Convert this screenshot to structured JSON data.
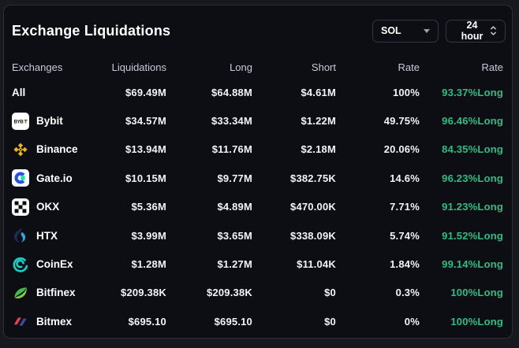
{
  "panel": {
    "title": "Exchange Liquidations",
    "controls": {
      "symbol_select": {
        "value": "SOL"
      },
      "timeframe_select": {
        "value": "24 hour"
      }
    }
  },
  "table": {
    "columns": [
      "Exchanges",
      "Liquidations",
      "Long",
      "Short",
      "Rate",
      "Rate"
    ],
    "rows": [
      {
        "name": "All",
        "icon": "",
        "liquidations": "$69.49M",
        "long": "$64.88M",
        "short": "$4.61M",
        "rate": "100%",
        "long_rate": "93.37%Long"
      },
      {
        "name": "Bybit",
        "icon": "bybit-icon",
        "liquidations": "$34.57M",
        "long": "$33.34M",
        "short": "$1.22M",
        "rate": "49.75%",
        "long_rate": "96.46%Long"
      },
      {
        "name": "Binance",
        "icon": "binance-icon",
        "liquidations": "$13.94M",
        "long": "$11.76M",
        "short": "$2.18M",
        "rate": "20.06%",
        "long_rate": "84.35%Long"
      },
      {
        "name": "Gate.io",
        "icon": "gateio-icon",
        "liquidations": "$10.15M",
        "long": "$9.77M",
        "short": "$382.75K",
        "rate": "14.6%",
        "long_rate": "96.23%Long"
      },
      {
        "name": "OKX",
        "icon": "okx-icon",
        "liquidations": "$5.36M",
        "long": "$4.89M",
        "short": "$470.00K",
        "rate": "7.71%",
        "long_rate": "91.23%Long"
      },
      {
        "name": "HTX",
        "icon": "htx-icon",
        "liquidations": "$3.99M",
        "long": "$3.65M",
        "short": "$338.09K",
        "rate": "5.74%",
        "long_rate": "91.52%Long"
      },
      {
        "name": "CoinEx",
        "icon": "coinex-icon",
        "liquidations": "$1.28M",
        "long": "$1.27M",
        "short": "$11.04K",
        "rate": "1.84%",
        "long_rate": "99.14%Long"
      },
      {
        "name": "Bitfinex",
        "icon": "bitfinex-icon",
        "liquidations": "$209.38K",
        "long": "$209.38K",
        "short": "$0",
        "rate": "0.3%",
        "long_rate": "100%Long"
      },
      {
        "name": "Bitmex",
        "icon": "bitmex-icon",
        "liquidations": "$695.10",
        "long": "$695.10",
        "short": "$0",
        "rate": "0%",
        "long_rate": "100%Long"
      }
    ]
  },
  "colors": {
    "background": "#17191f",
    "card_background": "#0c0e14",
    "card_border": "#2b2f38",
    "header_text": "#c6ccd8",
    "value_text": "#f2f4f7",
    "long_green": "#2ebd85",
    "bybit_orange": "#f7a600",
    "binance_yellow": "#f0b90b",
    "gate_blue": "#2354e6",
    "gate_teal": "#17e6a1",
    "okx_black": "#0b0b0b",
    "htx_dark": "#1f2a54",
    "htx_blue": "#2ca6e0",
    "coinex_teal": "#14d2c6",
    "bitfinex_light_green": "#89c540",
    "bitfinex_dark_green": "#3dbc4a",
    "bitmex_red": "#e8424f",
    "bitmex_blue": "#3b4ea0"
  }
}
